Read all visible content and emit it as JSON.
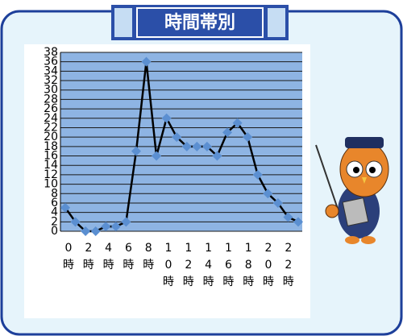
{
  "chart_data": {
    "type": "line",
    "title": "時間帯別",
    "categories": [
      "0時",
      null,
      "2時",
      null,
      "4時",
      null,
      "6時",
      null,
      "8時",
      null,
      "10時",
      null,
      "12時",
      null,
      "14時",
      null,
      "16時",
      null,
      "18時",
      null,
      "20時",
      null,
      "22時",
      null
    ],
    "values": [
      5,
      2,
      0,
      0,
      1,
      1,
      2,
      17,
      36,
      16,
      24,
      20,
      18,
      18,
      18,
      16,
      21,
      23,
      20,
      12,
      8,
      6,
      3,
      2
    ],
    "color": "#000000",
    "marker_color": "#5b8fd1",
    "ylim": [
      0,
      38
    ],
    "yticks": [
      0,
      2,
      4,
      6,
      8,
      10,
      12,
      14,
      16,
      18,
      20,
      22,
      24,
      26,
      28,
      30,
      32,
      34,
      36,
      38
    ],
    "grid": true
  }
}
